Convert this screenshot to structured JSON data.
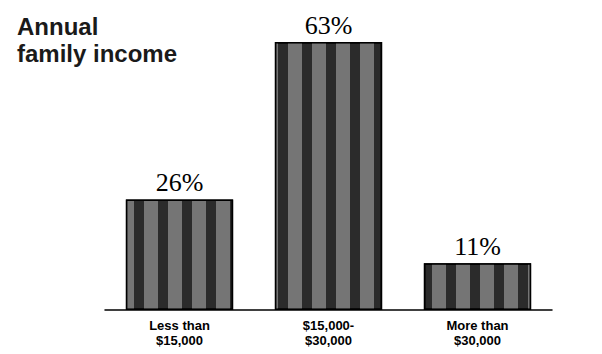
{
  "chart_data": {
    "type": "bar",
    "title": "Annual family income",
    "categories": [
      "Less than $15,000",
      "$15,000-$30,000",
      "More than $30,000"
    ],
    "values": [
      26,
      63,
      11
    ],
    "value_labels": [
      "26%",
      "63%",
      "11%"
    ],
    "color": "#2b2b2b",
    "data_labels": true,
    "tick_labels": "x",
    "grid": false
  }
}
